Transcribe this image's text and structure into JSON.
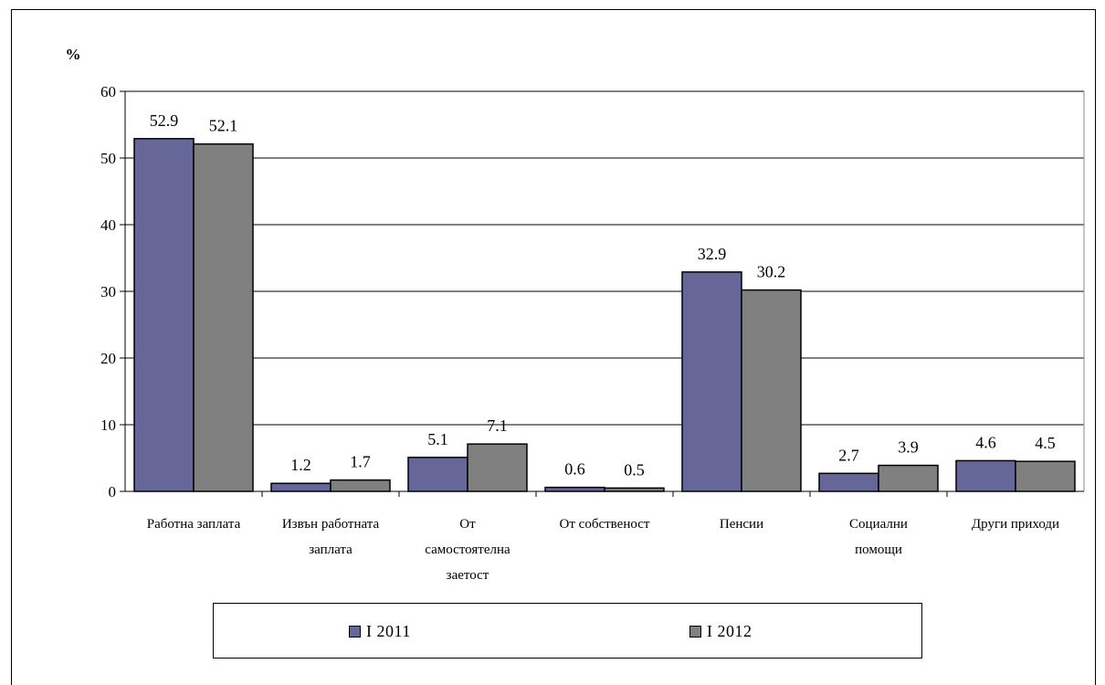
{
  "chart_data": {
    "type": "bar",
    "unit_label": "%",
    "categories": [
      [
        "Работна заплата"
      ],
      [
        "Извън работната",
        "заплата"
      ],
      [
        "От",
        "самостоятелна",
        "заетост"
      ],
      [
        "От собственост"
      ],
      [
        "Пенсии"
      ],
      [
        "Социални",
        "помощи"
      ],
      [
        "Други приходи"
      ]
    ],
    "series": [
      {
        "name": "I 2011",
        "values": [
          52.9,
          1.2,
          5.1,
          0.6,
          32.9,
          2.7,
          4.6
        ],
        "labels": [
          "52.9",
          "1.2",
          "5.1",
          "0.6",
          "32.9",
          "2.7",
          "4.6"
        ],
        "color": "#666699"
      },
      {
        "name": "I 2012",
        "values": [
          52.1,
          1.7,
          7.1,
          0.5,
          30.2,
          3.9,
          4.5
        ],
        "labels": [
          "52.1",
          "1.7",
          "7.1",
          "0.5",
          "30.2",
          "3.9",
          "4.5"
        ],
        "color": "#808080"
      }
    ],
    "yticks": [
      "0",
      "10",
      "20",
      "30",
      "40",
      "50",
      "60"
    ],
    "ylim": [
      0,
      60
    ],
    "grid": true,
    "legend_position": "bottom"
  }
}
